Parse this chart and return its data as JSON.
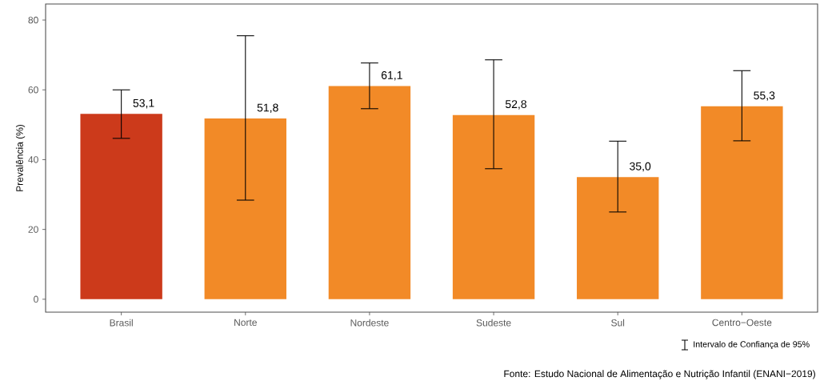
{
  "chart_data": {
    "type": "bar",
    "ylabel": "Prevalência (%)",
    "categories": [
      "Brasil",
      "Norte",
      "Nordeste",
      "Sudeste",
      "Sul",
      "Centro−Oeste"
    ],
    "values": [
      53.1,
      51.8,
      61.1,
      52.8,
      35.0,
      55.3
    ],
    "value_labels": [
      "53,1",
      "51,8",
      "61,1",
      "52,8",
      "35,0",
      "55,3"
    ],
    "errors": [
      [
        46.1,
        60.0
      ],
      [
        28.4,
        75.5
      ],
      [
        54.6,
        67.7
      ],
      [
        37.4,
        68.6
      ],
      [
        25.0,
        45.3
      ],
      [
        45.4,
        65.5
      ]
    ],
    "colors": [
      "#cc3a1b",
      "#f28a27",
      "#f28a27",
      "#f28a27",
      "#f28a27",
      "#f28a27"
    ],
    "ylim": [
      -3.7,
      84.6
    ],
    "yticks": [
      0,
      20,
      40,
      60,
      80
    ],
    "grid": false,
    "annotations": [
      "Intervalo de Confiança de 95%",
      "Fonte: Estudo Nacional de Alimentação e Nutrição Infantil (ENANI−2019)"
    ]
  }
}
